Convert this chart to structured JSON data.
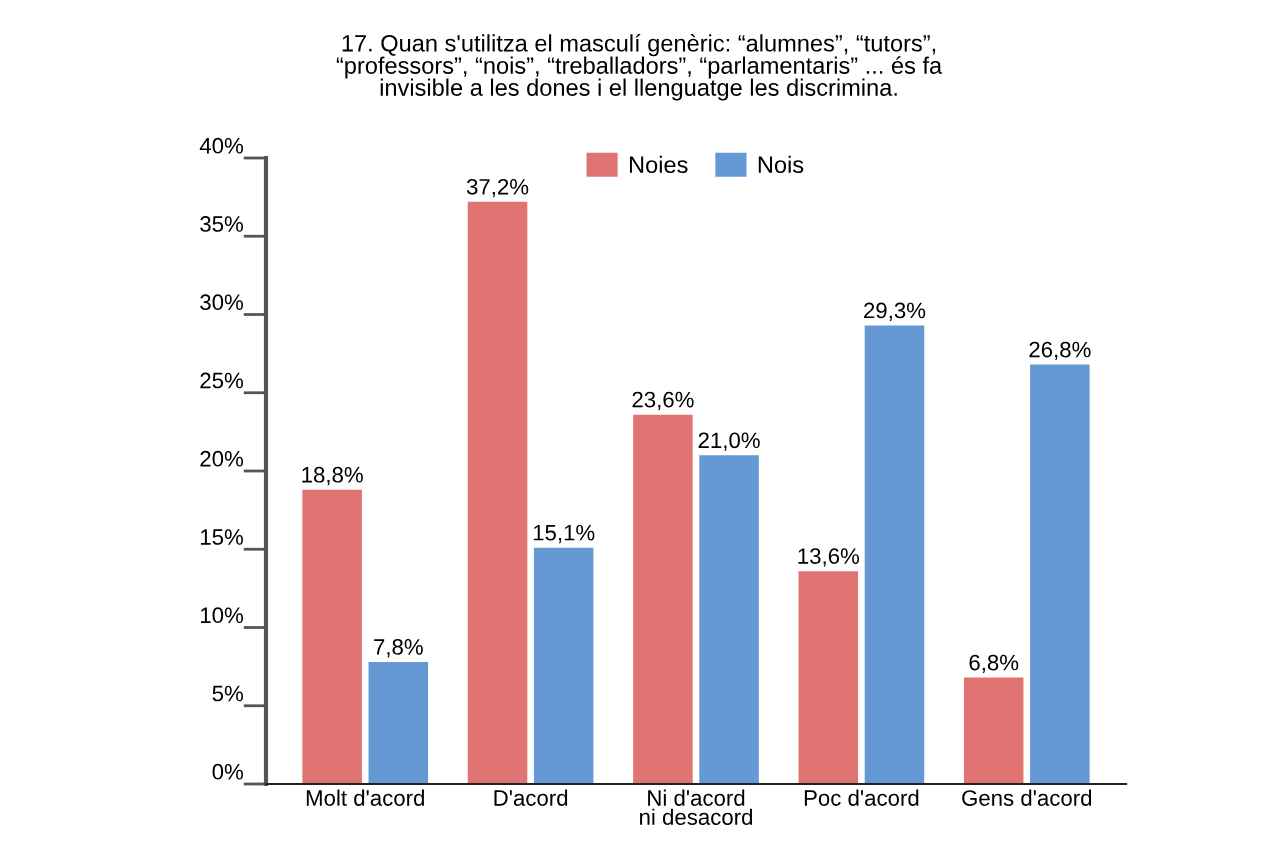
{
  "chart_data": {
    "type": "bar",
    "title": "17. Quan s'utilitza el masculí genèric: “alumnes”, “tutors”,\n“professors”, “nois”, “treballadors”, “parlamentaris” ... és fa\ninvisible a les dones i el llenguatge les discrimina.",
    "categories": [
      "Molt d'acord",
      "D'acord",
      "Ni d'acord\nni desacord",
      "Poc d'acord",
      "Gens d'acord"
    ],
    "series": [
      {
        "name": "Noies",
        "color": "#df7473",
        "values": [
          18.8,
          37.2,
          23.6,
          13.6,
          6.8
        ],
        "value_labels": [
          "18,8%",
          "37,2%",
          "23,6%",
          "13,6%",
          "6,8%"
        ]
      },
      {
        "name": "Nois",
        "color": "#6499d6",
        "values": [
          7.8,
          15.1,
          21.0,
          29.3,
          26.8
        ],
        "value_labels": [
          "7,8%",
          "15,1%",
          "21,0%",
          "29,3%",
          "26,8%"
        ]
      }
    ],
    "ylim": [
      0,
      40
    ],
    "yticks": [
      {
        "value": 0,
        "label": "0%"
      },
      {
        "value": 5,
        "label": "5%"
      },
      {
        "value": 10,
        "label": "10%"
      },
      {
        "value": 15,
        "label": "15%"
      },
      {
        "value": 20,
        "label": "20%"
      },
      {
        "value": 25,
        "label": "25%"
      },
      {
        "value": 30,
        "label": "30%"
      },
      {
        "value": 35,
        "label": "35%"
      },
      {
        "value": 40,
        "label": "40%"
      }
    ],
    "grid": false,
    "legend": "top"
  }
}
